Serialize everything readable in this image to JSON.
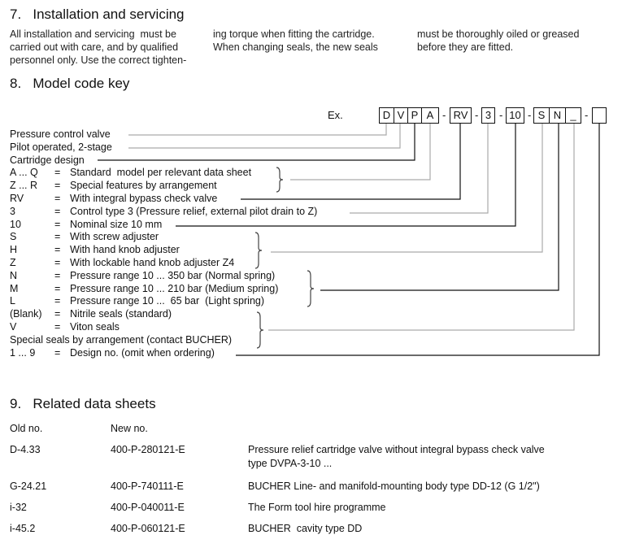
{
  "section7": {
    "title": "7.   Installation and servicing",
    "col1": "All installation and servicing  must be\ncarried out with care, and by qualified\npersonnel only. Use the correct tighten-",
    "col2": "ing torque when fitting the cartridge.\nWhen changing seals, the new seals",
    "col3": "must be thoroughly oiled or greased\nbefore they are fitted."
  },
  "section8": {
    "title": "8.   Model code key",
    "ex": "Ex.",
    "boxes": [
      "D",
      "V",
      "P",
      "A",
      "RV",
      "3",
      "10",
      "S",
      "N",
      "_",
      ""
    ],
    "dash": "-",
    "rows": [
      {
        "code": "Pressure control valve",
        "eq": "",
        "desc": ""
      },
      {
        "code": "Pilot operated, 2-stage",
        "eq": "",
        "desc": ""
      },
      {
        "code": "Cartridge design",
        "eq": "",
        "desc": ""
      },
      {
        "code": "A ... Q",
        "eq": "=",
        "desc": "Standard  model per relevant data sheet"
      },
      {
        "code": "Z ... R",
        "eq": "=",
        "desc": "Special features by arrangement"
      },
      {
        "code": "RV",
        "eq": "=",
        "desc": "With integral bypass check valve"
      },
      {
        "code": "3",
        "eq": "=",
        "desc": "Control type 3 (Pressure relief, external pilot drain to Z)"
      },
      {
        "code": "10",
        "eq": "=",
        "desc": "Nominal size 10 mm"
      },
      {
        "code": "S",
        "eq": "=",
        "desc": "With screw adjuster"
      },
      {
        "code": "H",
        "eq": "=",
        "desc": "With hand knob adjuster"
      },
      {
        "code": "Z",
        "eq": "=",
        "desc": "With lockable hand knob adjuster Z4"
      },
      {
        "code": "N",
        "eq": "=",
        "desc": "Pressure range 10 ... 350 bar (Normal spring)"
      },
      {
        "code": "M",
        "eq": "=",
        "desc": "Pressure range 10 ... 210 bar (Medium spring)"
      },
      {
        "code": "L",
        "eq": "=",
        "desc": "Pressure range 10 ...  65 bar  (Light spring)"
      },
      {
        "code": "(Blank)",
        "eq": "=",
        "desc": "Nitrile seals (standard)"
      },
      {
        "code": "V",
        "eq": "=",
        "desc": "Viton seals"
      },
      {
        "code": "Special seals by arrangement (contact BUCHER)",
        "eq": "",
        "desc": ""
      },
      {
        "code": "1 ... 9",
        "eq": "=",
        "desc": "Design no. (omit when ordering)"
      }
    ]
  },
  "section9": {
    "title": "9.   Related data sheets",
    "headers": [
      "Old no.",
      "New no."
    ],
    "rows": [
      {
        "old": "D-4.33",
        "new": "400-P-280121-E",
        "desc": "Pressure relief cartridge valve without integral bypass check valve\ntype DVPA-3-10 ..."
      },
      {
        "old": "G-24.21",
        "new": "400-P-740111-E",
        "desc": "BUCHER Line- and manifold-mounting body type DD-12 (G 1/2\")"
      },
      {
        "old": "i-32",
        "new": "400-P-040011-E",
        "desc": "The Form tool hire programme"
      },
      {
        "old": "i-45.2",
        "new": "400-P-060121-E",
        "desc": "BUCHER  cavity type DD"
      }
    ]
  }
}
